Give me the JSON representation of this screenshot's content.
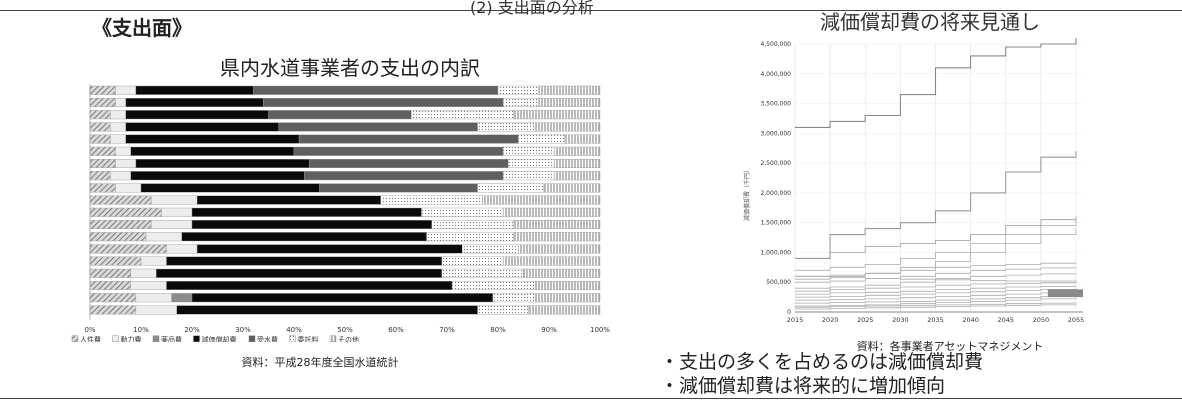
{
  "header_strip": "(2) 支出面の分析",
  "section_title": "《支出面》",
  "bullets": [
    "・支出の多くを占めるのは減価償却費",
    "・減価償却費は将来的に増加傾向"
  ],
  "chart_data": [
    {
      "type": "bar",
      "orientation": "horizontal",
      "stacked": true,
      "title": "県内水道事業者の支出の内訳",
      "source": "資料：平成28年度全国水道統計",
      "xlim": [
        0,
        100
      ],
      "xticks": [
        "0%",
        "10%",
        "20%",
        "30%",
        "40%",
        "50%",
        "60%",
        "70%",
        "80%",
        "90%",
        "100%"
      ],
      "legend_position": "bottom",
      "series_names": [
        "人件費",
        "動力費",
        "薬品費",
        "減価償却費",
        "受水費",
        "委託料",
        "その他"
      ],
      "colors": [
        "#b8b8b8",
        "#ededed",
        "#8c8c8c",
        "#0a0a0a",
        "#5f5f5f",
        "#d6d6d6",
        "#ffffff"
      ],
      "rows": [
        [
          5,
          4,
          0,
          23,
          48,
          8,
          12
        ],
        [
          5,
          2,
          0,
          27,
          47,
          7,
          12
        ],
        [
          4,
          3,
          0,
          28,
          28,
          20,
          17
        ],
        [
          4,
          3,
          0,
          30,
          39,
          11,
          13
        ],
        [
          4,
          3,
          0,
          34,
          43,
          9,
          7
        ],
        [
          5,
          3,
          0,
          32,
          41,
          10,
          9
        ],
        [
          5,
          4,
          0,
          34,
          39,
          9,
          9
        ],
        [
          4,
          4,
          0,
          34,
          39,
          10,
          9
        ],
        [
          5,
          5,
          0,
          35,
          31,
          13,
          11
        ],
        [
          12,
          9,
          0,
          36,
          0,
          20,
          23
        ],
        [
          14,
          6,
          0,
          45,
          0,
          16,
          19
        ],
        [
          12,
          8,
          0,
          47,
          0,
          16,
          17
        ],
        [
          11,
          7,
          0,
          48,
          0,
          17,
          17
        ],
        [
          15,
          6,
          0,
          52,
          0,
          11,
          16
        ],
        [
          10,
          5,
          0,
          54,
          0,
          12,
          19
        ],
        [
          8,
          5,
          0,
          56,
          0,
          16,
          15
        ],
        [
          8,
          7,
          0,
          56,
          0,
          16,
          13
        ],
        [
          9,
          7,
          4,
          59,
          0,
          8,
          13
        ],
        [
          9,
          8,
          0,
          59,
          0,
          10,
          14
        ]
      ]
    },
    {
      "type": "line",
      "title": "減価償却費の将来見通し",
      "source": "資料：各事業者アセットマネジメント",
      "ylabel": "減価償却費（千円）",
      "xlim": [
        2015,
        2056
      ],
      "ylim": [
        0,
        4500000
      ],
      "xticks": [
        2015,
        2020,
        2025,
        2030,
        2035,
        2040,
        2045,
        2050,
        2055
      ],
      "yticks": [
        "0",
        "500,000",
        "1,000,000",
        "1,500,000",
        "2,000,000",
        "2,500,000",
        "3,000,000",
        "3,500,000",
        "4,000,000",
        "4,500,000"
      ],
      "x": [
        2015,
        2020,
        2025,
        2030,
        2035,
        2040,
        2045,
        2050,
        2055
      ],
      "series": [
        {
          "values": [
            3100000,
            3200000,
            3300000,
            3650000,
            4100000,
            4300000,
            4450000,
            4500000,
            4600000
          ]
        },
        {
          "values": [
            900000,
            1300000,
            1400000,
            1500000,
            1700000,
            2000000,
            2350000,
            2600000,
            2700000
          ]
        },
        {
          "values": [
            900000,
            1000000,
            1100000,
            1150000,
            1200000,
            1300000,
            1450000,
            1550000,
            1600000
          ]
        },
        {
          "values": [
            700000,
            750000,
            800000,
            900000,
            1000000,
            1150000,
            1300000,
            1450000,
            1550000
          ]
        },
        {
          "values": [
            550000,
            600000,
            650000,
            750000,
            850000,
            1000000,
            1150000,
            1300000,
            1400000
          ]
        },
        {
          "values": [
            600000,
            620000,
            650000,
            700000,
            750000,
            780000,
            800000,
            820000,
            830000
          ]
        },
        {
          "values": [
            500000,
            520000,
            560000,
            600000,
            650000,
            700000,
            720000,
            740000,
            750000
          ]
        },
        {
          "values": [
            400000,
            420000,
            450000,
            500000,
            560000,
            600000,
            620000,
            640000,
            650000
          ]
        },
        {
          "values": [
            600000,
            580000,
            560000,
            550000,
            540000,
            530000,
            520000,
            520000,
            500000
          ]
        },
        {
          "values": [
            350000,
            380000,
            400000,
            420000,
            450000,
            470000,
            480000,
            490000,
            500000
          ]
        },
        {
          "values": [
            300000,
            320000,
            330000,
            350000,
            380000,
            400000,
            420000,
            430000,
            440000
          ]
        },
        {
          "values": [
            250000,
            260000,
            280000,
            300000,
            320000,
            340000,
            360000,
            380000,
            400000
          ]
        },
        {
          "values": [
            200000,
            210000,
            220000,
            240000,
            260000,
            280000,
            300000,
            320000,
            340000
          ]
        },
        {
          "values": [
            150000,
            160000,
            170000,
            180000,
            200000,
            220000,
            240000,
            260000,
            280000
          ]
        },
        {
          "values": [
            100000,
            110000,
            120000,
            140000,
            160000,
            180000,
            200000,
            220000,
            240000
          ]
        },
        {
          "values": [
            80000,
            90000,
            100000,
            110000,
            120000,
            130000,
            140000,
            150000,
            160000
          ]
        },
        {
          "values": [
            50000,
            60000,
            70000,
            80000,
            90000,
            100000,
            110000,
            120000,
            130000
          ]
        }
      ]
    }
  ]
}
